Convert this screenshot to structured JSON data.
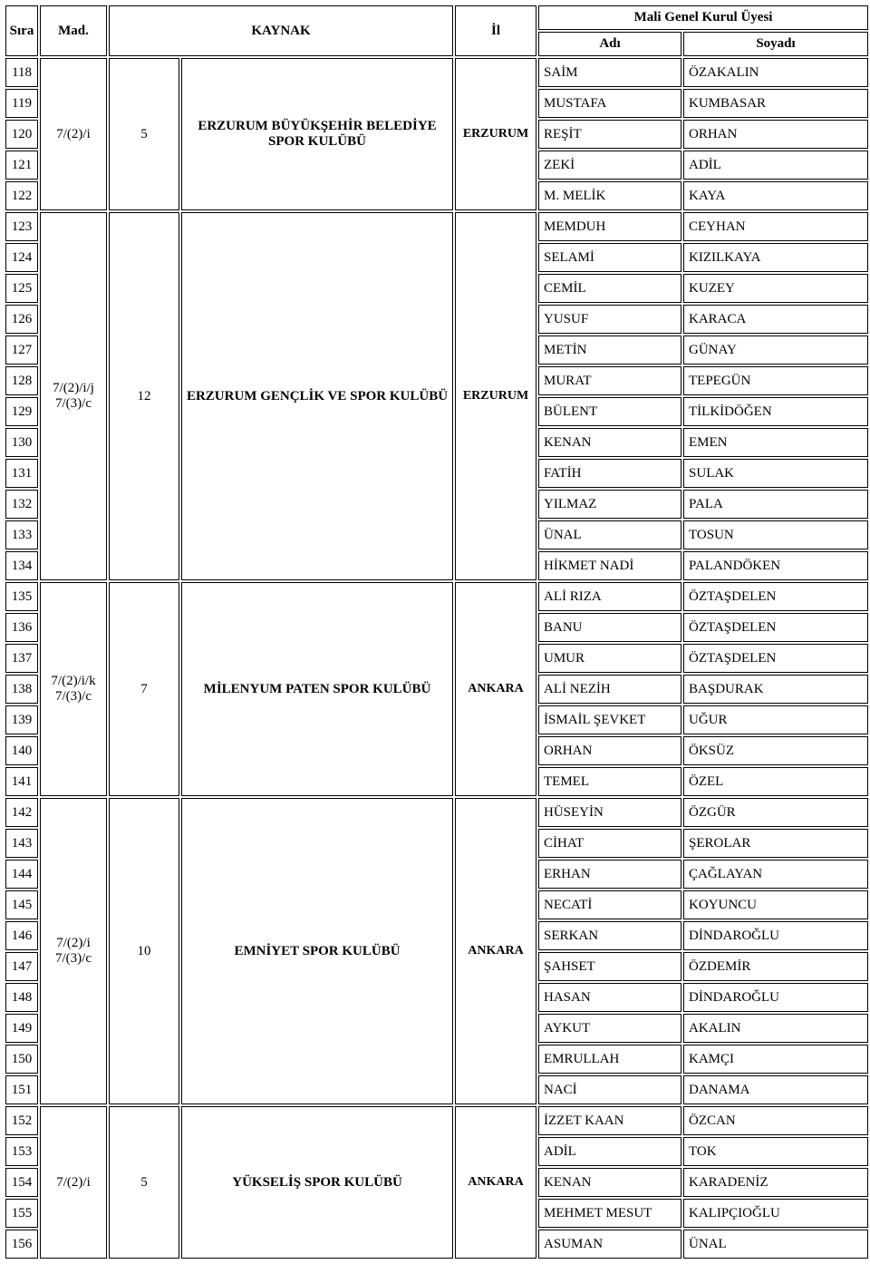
{
  "header": {
    "sira": "Sıra",
    "mad": "Mad.",
    "kaynak": "KAYNAK",
    "il": "İl",
    "mali_genel_kurul_uyesi": "Mali Genel Kurul Üyesi",
    "adi": "Adı",
    "soyadi": "Soyadı"
  },
  "colors": {
    "text": "#000000",
    "background": "#ffffff",
    "border": "#000000"
  },
  "font": {
    "family": "Times New Roman",
    "size_pt_header": 11,
    "size_pt_cell": 11
  },
  "groups": [
    {
      "mad": "7/(2)/i",
      "count": "5",
      "kaynak": "ERZURUM BÜYÜKŞEHİR BELEDİYE SPOR KULÜBÜ",
      "il": "ERZURUM",
      "rows": [
        {
          "sira": "118",
          "adi": "SAİM",
          "soyadi": "ÖZAKALIN"
        },
        {
          "sira": "119",
          "adi": "MUSTAFA",
          "soyadi": "KUMBASAR"
        },
        {
          "sira": "120",
          "adi": "REŞİT",
          "soyadi": "ORHAN"
        },
        {
          "sira": "121",
          "adi": "ZEKİ",
          "soyadi": "ADİL"
        },
        {
          "sira": "122",
          "adi": "M. MELİK",
          "soyadi": "KAYA"
        }
      ]
    },
    {
      "mad": "7/(2)/i/j\n7/(3)/c",
      "count": "12",
      "kaynak": "ERZURUM GENÇLİK VE SPOR KULÜBÜ",
      "il": "ERZURUM",
      "rows": [
        {
          "sira": "123",
          "adi": "MEMDUH",
          "soyadi": "CEYHAN"
        },
        {
          "sira": "124",
          "adi": "SELAMİ",
          "soyadi": "KIZILKAYA"
        },
        {
          "sira": "125",
          "adi": "CEMİL",
          "soyadi": "KUZEY"
        },
        {
          "sira": "126",
          "adi": "YUSUF",
          "soyadi": "KARACA"
        },
        {
          "sira": "127",
          "adi": "METİN",
          "soyadi": "GÜNAY"
        },
        {
          "sira": "128",
          "adi": "MURAT",
          "soyadi": "TEPEGÜN"
        },
        {
          "sira": "129",
          "adi": "BÜLENT",
          "soyadi": "TİLKİDÖĞEN"
        },
        {
          "sira": "130",
          "adi": "KENAN",
          "soyadi": "EMEN"
        },
        {
          "sira": "131",
          "adi": "FATİH",
          "soyadi": "SULAK"
        },
        {
          "sira": "132",
          "adi": "YILMAZ",
          "soyadi": "PALA"
        },
        {
          "sira": "133",
          "adi": "ÜNAL",
          "soyadi": "TOSUN"
        },
        {
          "sira": "134",
          "adi": "HİKMET NADİ",
          "soyadi": "PALANDÖKEN"
        }
      ]
    },
    {
      "mad": "7/(2)/i/k\n7/(3)/c",
      "count": "7",
      "kaynak": "MİLENYUM PATEN SPOR KULÜBÜ",
      "il": "ANKARA",
      "rows": [
        {
          "sira": "135",
          "adi": "ALİ RIZA",
          "soyadi": "ÖZTAŞDELEN"
        },
        {
          "sira": "136",
          "adi": "BANU",
          "soyadi": "ÖZTAŞDELEN"
        },
        {
          "sira": "137",
          "adi": "UMUR",
          "soyadi": "ÖZTAŞDELEN"
        },
        {
          "sira": "138",
          "adi": "ALİ NEZİH",
          "soyadi": "BAŞDURAK"
        },
        {
          "sira": "139",
          "adi": "İSMAİL ŞEVKET",
          "soyadi": "UĞUR"
        },
        {
          "sira": "140",
          "adi": "ORHAN",
          "soyadi": "ÖKSÜZ"
        },
        {
          "sira": "141",
          "adi": "TEMEL",
          "soyadi": "ÖZEL"
        }
      ]
    },
    {
      "mad": "7/(2)/i\n7/(3)/c",
      "count": "10",
      "kaynak": "EMNİYET SPOR KULÜBÜ",
      "il": "ANKARA",
      "rows": [
        {
          "sira": "142",
          "adi": "HÜSEYİN",
          "soyadi": "ÖZGÜR"
        },
        {
          "sira": "143",
          "adi": "CİHAT",
          "soyadi": "ŞEROLAR"
        },
        {
          "sira": "144",
          "adi": "ERHAN",
          "soyadi": "ÇAĞLAYAN"
        },
        {
          "sira": "145",
          "adi": "NECATİ",
          "soyadi": "KOYUNCU"
        },
        {
          "sira": "146",
          "adi": "SERKAN",
          "soyadi": "DİNDAROĞLU"
        },
        {
          "sira": "147",
          "adi": "ŞAHSET",
          "soyadi": "ÖZDEMİR"
        },
        {
          "sira": "148",
          "adi": "HASAN",
          "soyadi": "DİNDAROĞLU"
        },
        {
          "sira": "149",
          "adi": "AYKUT",
          "soyadi": "AKALIN"
        },
        {
          "sira": "150",
          "adi": "EMRULLAH",
          "soyadi": "KAMÇI"
        },
        {
          "sira": "151",
          "adi": "NACİ",
          "soyadi": "DANAMA"
        }
      ]
    },
    {
      "mad": "7/(2)/i",
      "count": "5",
      "kaynak": "YÜKSELİŞ SPOR KULÜBÜ",
      "il": "ANKARA",
      "rows": [
        {
          "sira": "152",
          "adi": "İZZET KAAN",
          "soyadi": "ÖZCAN"
        },
        {
          "sira": "153",
          "adi": "ADİL",
          "soyadi": "TOK"
        },
        {
          "sira": "154",
          "adi": "KENAN",
          "soyadi": "KARADENİZ"
        },
        {
          "sira": "155",
          "adi": "MEHMET MESUT",
          "soyadi": "KALIPÇIOĞLU"
        },
        {
          "sira": "156",
          "adi": "ASUMAN",
          "soyadi": "ÜNAL"
        }
      ]
    }
  ]
}
